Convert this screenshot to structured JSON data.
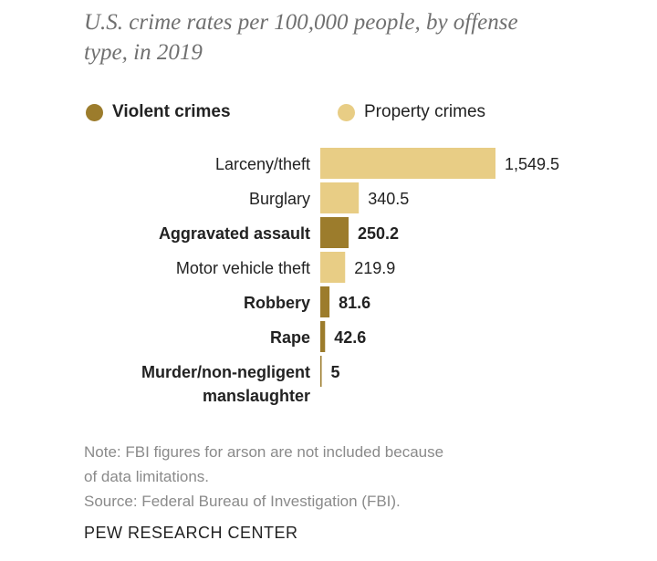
{
  "title_lines": [
    "U.S. crime rates per 100,000 people, by offense",
    "type, in 2019"
  ],
  "legend": [
    {
      "label": "Violent crimes",
      "color": "#9c7c2c",
      "bold": true
    },
    {
      "label": "Property crimes",
      "color": "#e8cd85",
      "bold": false
    }
  ],
  "chart_data": {
    "type": "bar",
    "orientation": "horizontal",
    "title": "U.S. crime rates per 100,000 people, by offense type, in 2019",
    "xlabel": "",
    "ylabel": "",
    "xlim": [
      0,
      1549.5
    ],
    "grid": false,
    "legend_position": "top",
    "categories": [
      [
        "Larceny/theft"
      ],
      [
        "Burglary"
      ],
      [
        "Aggravated assault"
      ],
      [
        "Motor vehicle theft"
      ],
      [
        "Robbery"
      ],
      [
        "Rape"
      ],
      [
        "Murder/non-negligent",
        "manslaughter"
      ]
    ],
    "values": [
      1549.5,
      340.5,
      250.2,
      219.9,
      81.6,
      42.6,
      5
    ],
    "value_labels": [
      "1,549.5",
      "340.5",
      "250.2",
      "219.9",
      "81.6",
      "42.6",
      "5"
    ],
    "series_type": [
      "Property crimes",
      "Property crimes",
      "Violent crimes",
      "Property crimes",
      "Violent crimes",
      "Violent crimes",
      "Violent crimes"
    ]
  },
  "note_lines": [
    "Note: FBI figures for arson are not included because",
    "of data limitations.",
    "Source: Federal Bureau of Investigation (FBI)."
  ],
  "brand": "PEW RESEARCH CENTER"
}
